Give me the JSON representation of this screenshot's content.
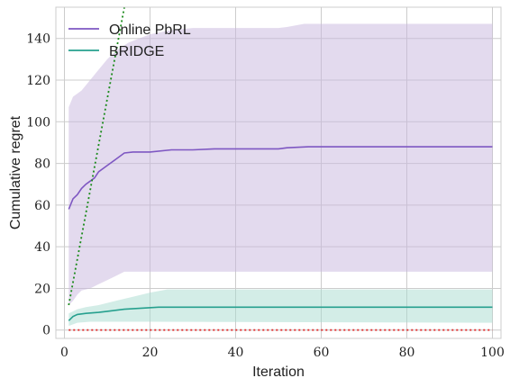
{
  "chart_data": {
    "type": "line",
    "xlabel": "Iteration",
    "ylabel": "Cumulative regret",
    "xlim": [
      -2,
      102
    ],
    "ylim": [
      -4,
      155
    ],
    "xticks": [
      0,
      20,
      40,
      60,
      80,
      100
    ],
    "yticks": [
      0,
      20,
      40,
      60,
      80,
      100,
      120,
      140
    ],
    "grid": true,
    "legend": "top-left",
    "series": [
      {
        "name": "Online PbRL",
        "color": "#7e57c2",
        "band_color": "#c8b6de",
        "points": [
          [
            1,
            58
          ],
          [
            2,
            63
          ],
          [
            3,
            65
          ],
          [
            4,
            68
          ],
          [
            5,
            70
          ],
          [
            6,
            71.5
          ],
          [
            7,
            73
          ],
          [
            8,
            76
          ],
          [
            10,
            79
          ],
          [
            12,
            82
          ],
          [
            14,
            85
          ],
          [
            16,
            85.5
          ],
          [
            20,
            85.5
          ],
          [
            25,
            86.5
          ],
          [
            30,
            86.5
          ],
          [
            35,
            87
          ],
          [
            40,
            87
          ],
          [
            45,
            87
          ],
          [
            50,
            87
          ],
          [
            52,
            87.5
          ],
          [
            57,
            88
          ],
          [
            60,
            88
          ],
          [
            80,
            88
          ],
          [
            100,
            88
          ]
        ],
        "upper": [
          [
            1,
            107
          ],
          [
            2,
            112
          ],
          [
            4,
            115
          ],
          [
            6,
            120
          ],
          [
            8,
            125
          ],
          [
            10,
            130
          ],
          [
            12,
            134
          ],
          [
            15,
            138
          ],
          [
            20,
            142
          ],
          [
            25,
            144
          ],
          [
            30,
            145
          ],
          [
            35,
            145
          ],
          [
            40,
            145
          ],
          [
            45,
            145
          ],
          [
            50,
            145
          ],
          [
            52,
            145.5
          ],
          [
            56,
            147
          ],
          [
            60,
            147
          ],
          [
            80,
            147
          ],
          [
            100,
            147
          ]
        ],
        "lower": [
          [
            1,
            12
          ],
          [
            2,
            14
          ],
          [
            3,
            17
          ],
          [
            4,
            19
          ],
          [
            6,
            20
          ],
          [
            8,
            22
          ],
          [
            10,
            24
          ],
          [
            12,
            26
          ],
          [
            14,
            28
          ],
          [
            20,
            28
          ],
          [
            30,
            28
          ],
          [
            40,
            28
          ],
          [
            60,
            28
          ],
          [
            80,
            28
          ],
          [
            100,
            28
          ]
        ]
      },
      {
        "name": "BRIDGE",
        "color": "#26a08e",
        "band_color": "#a8dccf",
        "points": [
          [
            1,
            4.5
          ],
          [
            2,
            6.5
          ],
          [
            3,
            7.5
          ],
          [
            5,
            8
          ],
          [
            8,
            8.5
          ],
          [
            10,
            9
          ],
          [
            14,
            10
          ],
          [
            18,
            10.5
          ],
          [
            22,
            11
          ],
          [
            100,
            11
          ]
        ],
        "upper": [
          [
            1,
            8
          ],
          [
            3,
            10
          ],
          [
            5,
            11
          ],
          [
            8,
            12
          ],
          [
            12,
            14
          ],
          [
            16,
            16
          ],
          [
            20,
            18
          ],
          [
            24,
            19.5
          ],
          [
            100,
            19.5
          ]
        ],
        "lower": [
          [
            1,
            2
          ],
          [
            3,
            3.5
          ],
          [
            6,
            4
          ],
          [
            10,
            4
          ],
          [
            20,
            4
          ],
          [
            100,
            3.5
          ]
        ]
      },
      {
        "color": "#1a8a1a",
        "style": "dotted",
        "points": [
          [
            1,
            12
          ],
          [
            14,
            155
          ]
        ]
      },
      {
        "color": "#e03030",
        "style": "dotted",
        "points": [
          [
            1,
            0
          ],
          [
            100,
            0
          ]
        ]
      }
    ]
  }
}
